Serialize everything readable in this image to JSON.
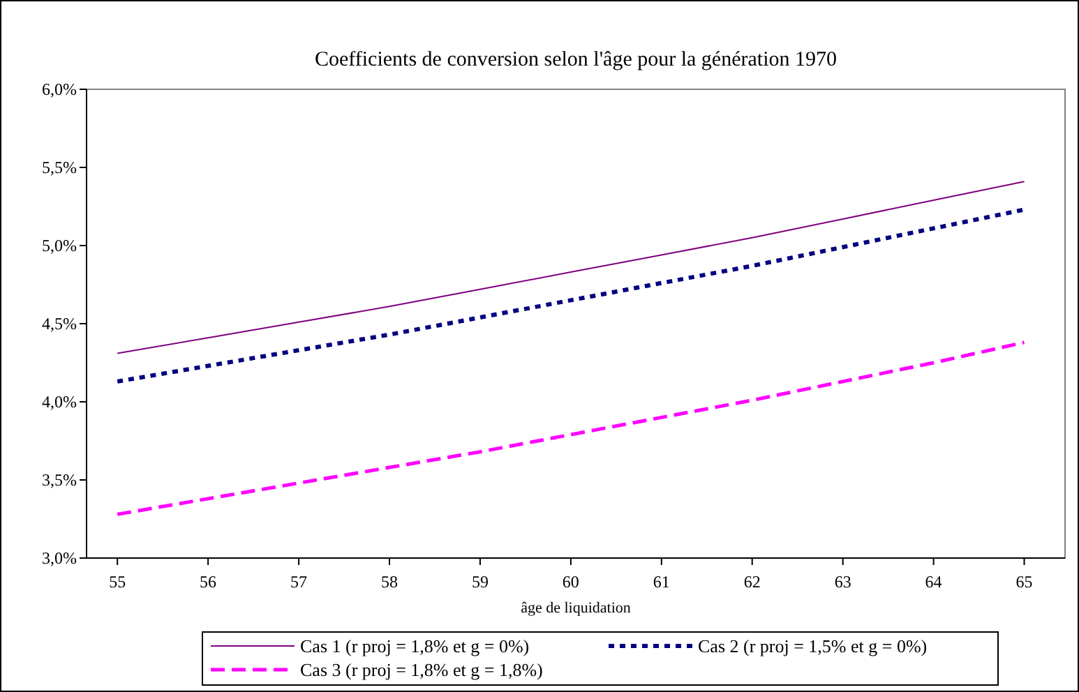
{
  "chart_data": {
    "type": "line",
    "title": "Coefficients de conversion selon l'âge pour la génération 1970",
    "xlabel": "âge de liquidation",
    "x": [
      55,
      56,
      57,
      58,
      59,
      60,
      61,
      62,
      63,
      64,
      65
    ],
    "xlim": [
      54.66,
      65.45
    ],
    "xticks": [
      55,
      56,
      57,
      58,
      59,
      60,
      61,
      62,
      63,
      64,
      65
    ],
    "ylim": [
      3,
      6
    ],
    "yticks": [
      {
        "value": 3,
        "label": "3,0%"
      },
      {
        "value": 3.5,
        "label": "3,5%"
      },
      {
        "value": 4,
        "label": "4,0%"
      },
      {
        "value": 4.5,
        "label": "4,5%"
      },
      {
        "value": 5,
        "label": "5,0%"
      },
      {
        "value": 5.5,
        "label": "5,5%"
      },
      {
        "value": 6,
        "label": "6,0%"
      }
    ],
    "grid": false,
    "legend": "bottom",
    "series": [
      {
        "name": "Cas 1 (r proj = 1,8% et g = 0%)",
        "color": "#800080",
        "line_style": "solid",
        "values": [
          4.31,
          4.41,
          4.51,
          4.61,
          4.72,
          4.83,
          4.94,
          5.05,
          5.17,
          5.29,
          5.41
        ]
      },
      {
        "name": "Cas 2 (r proj = 1,5% et g = 0%)",
        "color": "#000080",
        "line_style": "dotted",
        "values": [
          4.13,
          4.23,
          4.33,
          4.43,
          4.54,
          4.65,
          4.76,
          4.87,
          4.99,
          5.11,
          5.23
        ]
      },
      {
        "name": "Cas 3 (r proj = 1,8% et g = 1,8%)",
        "color": "#ff00ff",
        "line_style": "dashed",
        "values": [
          3.28,
          3.38,
          3.48,
          3.58,
          3.68,
          3.79,
          3.9,
          4.01,
          4.13,
          4.25,
          4.38
        ]
      }
    ]
  }
}
